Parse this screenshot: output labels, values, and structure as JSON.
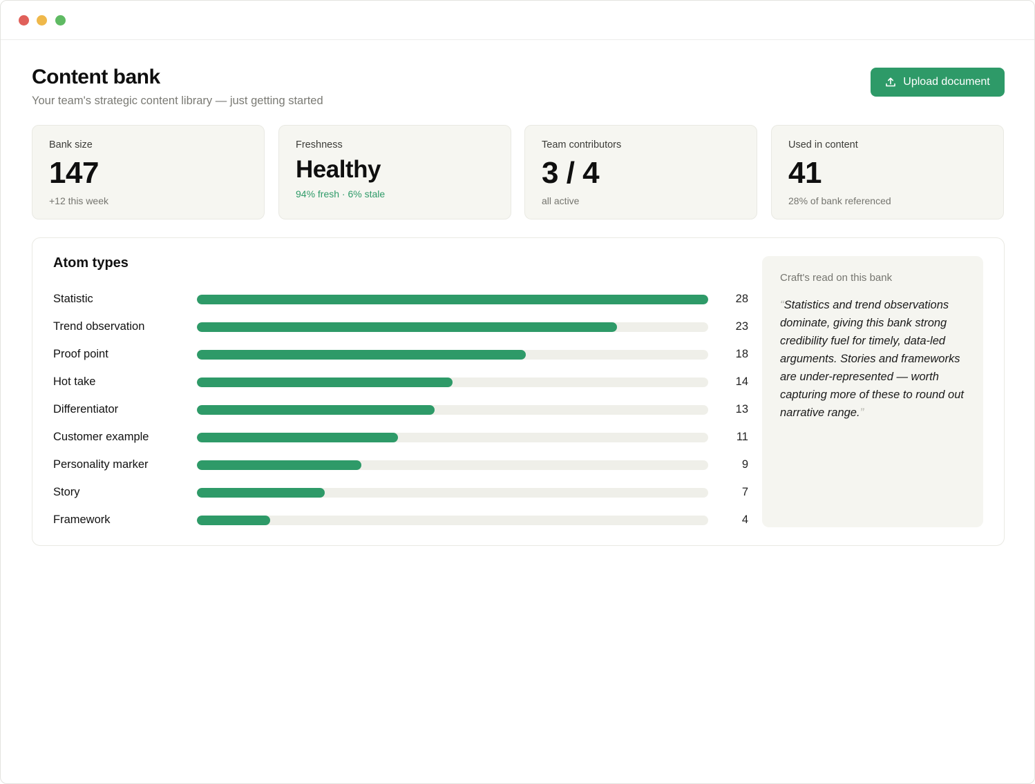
{
  "window": {
    "colors": {
      "close": "#e0605a",
      "minimize": "#efb84a",
      "maximize": "#5fba63"
    }
  },
  "header": {
    "title": "Content bank",
    "subtitle": "Your team's strategic content library — just getting started",
    "upload_label": "Upload document",
    "upload_icon": "upload-icon"
  },
  "colors": {
    "accent": "#2e9a68",
    "accent_text": "#2e9a68"
  },
  "stats": [
    {
      "label": "Bank size",
      "value": "147",
      "note": "+12 this week"
    },
    {
      "label": "Freshness",
      "value": "Healthy",
      "note": "94% fresh · 6% stale"
    },
    {
      "label": "Team contributors",
      "value": "3 / 4",
      "note": "all active"
    },
    {
      "label": "Used in content",
      "value": "41",
      "note": "28% of bank referenced"
    }
  ],
  "atoms": {
    "title": "Atom types",
    "max": 28,
    "items": [
      {
        "label": "Statistic",
        "count": 28
      },
      {
        "label": "Trend observation",
        "count": 23
      },
      {
        "label": "Proof point",
        "count": 18
      },
      {
        "label": "Hot take",
        "count": 14
      },
      {
        "label": "Differentiator",
        "count": 13
      },
      {
        "label": "Customer example",
        "count": 11
      },
      {
        "label": "Personality marker",
        "count": 9
      },
      {
        "label": "Story",
        "count": 7
      },
      {
        "label": "Framework",
        "count": 4
      }
    ]
  },
  "insight": {
    "heading": "Craft's read on this bank",
    "open_quote": "“",
    "close_quote": "”",
    "text": "Statistics and trend observations dominate, giving this bank strong credibility fuel for timely, data-led arguments. Stories and frameworks are under-represented — worth capturing more of these to round out narrative range."
  }
}
